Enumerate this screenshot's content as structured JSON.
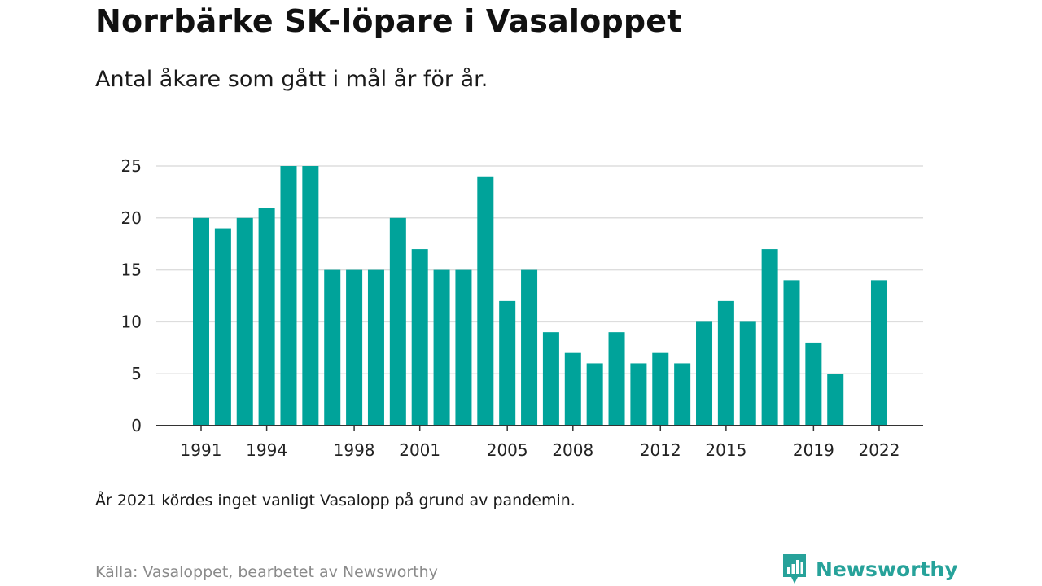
{
  "title": "Norrbärke SK-löpare i Vasaloppet",
  "subtitle": "Antal åkare som gått i mål år för år.",
  "note": "År 2021 kördes inget vanligt Vasalopp på grund av pandemin.",
  "source": "Källa: Vasaloppet, bearbetet av Newsworthy",
  "brand": {
    "name": "Newsworthy",
    "icon": "newsworthy-logo-icon",
    "color": "#27a29a"
  },
  "chart_data": {
    "type": "bar",
    "title": "Norrbärke SK-löpare i Vasaloppet",
    "subtitle": "Antal åkare som gått i mål år för år.",
    "xlabel": "",
    "ylabel": "",
    "ylim": [
      0,
      25
    ],
    "yticks": [
      "0",
      "5",
      "10",
      "15",
      "20",
      "25"
    ],
    "xticks": [
      "1991",
      "1994",
      "1998",
      "2001",
      "2005",
      "2008",
      "2012",
      "2015",
      "2019",
      "2022"
    ],
    "grid": true,
    "legend": "none",
    "bar_color": "#00a39a",
    "categories": [
      1991,
      1992,
      1993,
      1994,
      1995,
      1996,
      1997,
      1998,
      1999,
      2000,
      2001,
      2002,
      2003,
      2004,
      2005,
      2006,
      2007,
      2008,
      2009,
      2010,
      2011,
      2012,
      2013,
      2014,
      2015,
      2016,
      2017,
      2018,
      2019,
      2020,
      2021,
      2022
    ],
    "values": [
      20,
      19,
      20,
      21,
      25,
      25,
      15,
      15,
      15,
      20,
      17,
      15,
      15,
      24,
      12,
      15,
      9,
      7,
      6,
      9,
      6,
      7,
      6,
      10,
      12,
      10,
      17,
      14,
      8,
      5,
      null,
      14
    ]
  }
}
